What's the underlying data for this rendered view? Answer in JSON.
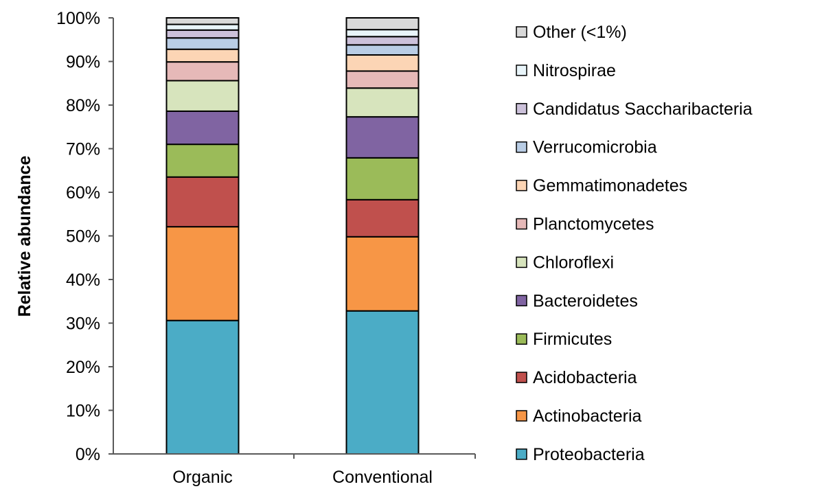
{
  "chart_data": {
    "type": "bar",
    "stacked": true,
    "title": "",
    "xlabel": "",
    "ylabel": "Relative abundance",
    "ylim": [
      0,
      100
    ],
    "yticks": [
      "0%",
      "10%",
      "20%",
      "30%",
      "40%",
      "50%",
      "60%",
      "70%",
      "80%",
      "90%",
      "100%"
    ],
    "categories": [
      "Organic",
      "Conventional"
    ],
    "legend_position": "right",
    "grid": false,
    "series": [
      {
        "name": "Proteobacteria",
        "color": "#4bacc6",
        "values": [
          30.6,
          32.8
        ]
      },
      {
        "name": "Actinobacteria",
        "color": "#f79646",
        "values": [
          21.5,
          17.0
        ]
      },
      {
        "name": "Acidobacteria",
        "color": "#c0504d",
        "values": [
          11.4,
          8.5
        ]
      },
      {
        "name": "Firmicutes",
        "color": "#9bbb59",
        "values": [
          7.5,
          9.6
        ]
      },
      {
        "name": "Bacteroidetes",
        "color": "#8064a2",
        "values": [
          7.6,
          9.4
        ]
      },
      {
        "name": "Chloroflexi",
        "color": "#d7e4bd",
        "values": [
          7.0,
          6.6
        ]
      },
      {
        "name": "Planctomycetes",
        "color": "#e6b9b8",
        "values": [
          4.3,
          3.9
        ]
      },
      {
        "name": "Gemmatimonadetes",
        "color": "#fcd5b5",
        "values": [
          2.9,
          3.7
        ]
      },
      {
        "name": "Verrucomicrobia",
        "color": "#b9cde5",
        "values": [
          2.6,
          2.3
        ]
      },
      {
        "name": "Candidatus Saccharibacteria",
        "color": "#ccc1da",
        "values": [
          1.8,
          1.9
        ]
      },
      {
        "name": "Nitrospirae",
        "color": "#e9f5fa",
        "values": [
          1.3,
          1.6
        ]
      },
      {
        "name": "Other (<1%)",
        "color": "#d9d9d9",
        "values": [
          1.5,
          2.7
        ]
      }
    ]
  }
}
